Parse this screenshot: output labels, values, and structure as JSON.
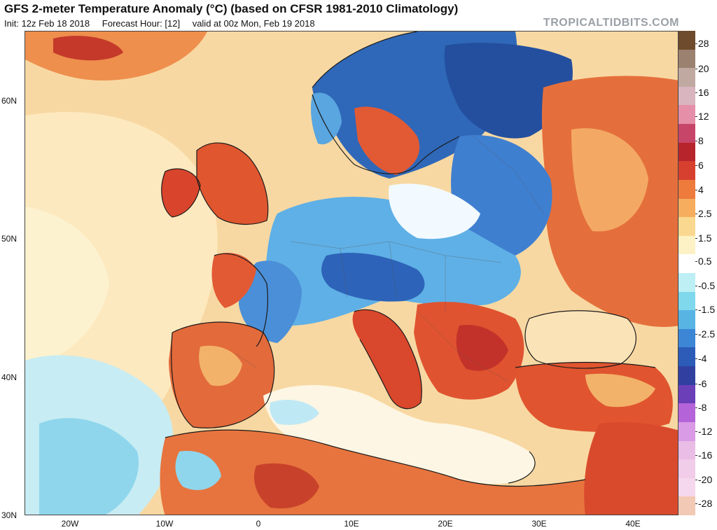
{
  "title": "GFS 2-meter Temperature Anomaly (°C) (based on CFSR 1981-2010 Climatology)",
  "subtitle": {
    "init": "Init: 12z Feb 18 2018",
    "forecast_hour": "Forecast Hour: [12]",
    "valid": "valid at 00z Mon, Feb 19 2018"
  },
  "brand": "TROPICALTIDBITS.COM",
  "map": {
    "lat_labels": [
      "60N",
      "50N",
      "40N",
      "30N"
    ],
    "lon_labels": [
      "20W",
      "10W",
      "0",
      "10E",
      "20E",
      "30E",
      "40E"
    ],
    "colors": {
      "ocean_warm": "#f6d6a0",
      "ocean_neutral": "#fdf3dc",
      "cold_light": "#a9dff0",
      "cold_mid": "#5aa6e0",
      "cold_deep": "#2b5fb0",
      "warm_light": "#f3b26a",
      "warm_mid": "#e56f3c",
      "warm_deep": "#c23b2a",
      "coast": "#1a1a1a"
    }
  },
  "colorbar": {
    "labels": [
      "28",
      "20",
      "16",
      "12",
      "8",
      "6",
      "4",
      "2.5",
      "1.5",
      "0.5",
      "-0.5",
      "-1.5",
      "-2.5",
      "-4",
      "-6",
      "-8",
      "-12",
      "-16",
      "-20",
      "-28"
    ],
    "colors": [
      "#6e4b2c",
      "#9b8170",
      "#bfa9a0",
      "#d9b5c0",
      "#e58fa8",
      "#c8456a",
      "#b8242c",
      "#d7402e",
      "#ee7a3c",
      "#f6ad5e",
      "#fad890",
      "#fdf2c6",
      "#ffffff",
      "#bdeff5",
      "#7fd8ec",
      "#58b4e3",
      "#3d86d6",
      "#2c5bb8",
      "#3140a0",
      "#6a3fb8",
      "#b464d8",
      "#d99be5",
      "#e9bde6",
      "#f1cdea",
      "#f6d8ee",
      "#f2c9b4"
    ]
  }
}
